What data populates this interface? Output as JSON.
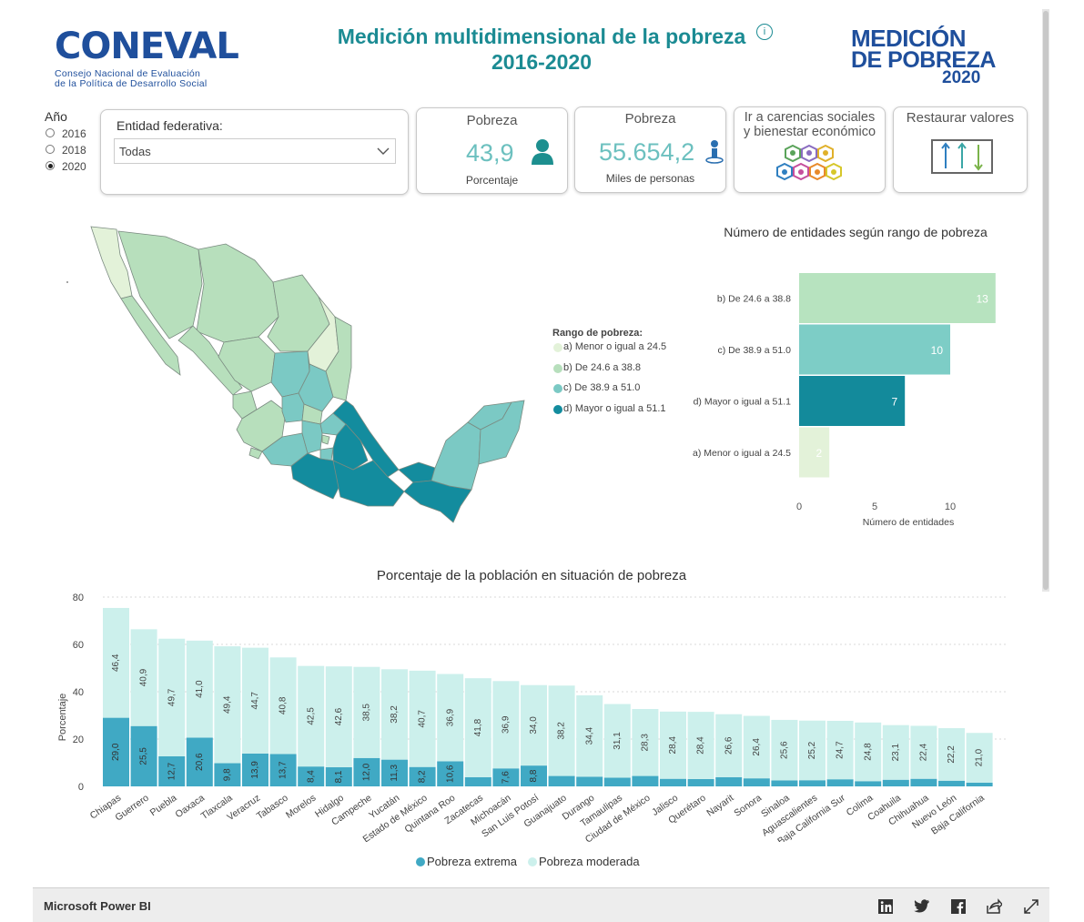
{
  "header": {
    "logo": {
      "name": "CONEVAL",
      "subtitle_line1": "Consejo Nacional de Evaluación",
      "subtitle_line2": "de la Política de Desarrollo Social"
    },
    "title_line1": "Medición multidimensional de la pobreza",
    "title_line2": "2016-2020",
    "logo_right": {
      "line1": "MEDICIÓN",
      "line2": "DE POBREZA",
      "line3": "2020"
    }
  },
  "filters": {
    "year_label": "Año",
    "years": [
      {
        "label": "2016",
        "selected": false
      },
      {
        "label": "2018",
        "selected": false
      },
      {
        "label": "2020",
        "selected": true
      }
    ],
    "entity_label": "Entidad federativa:",
    "entity_value": "Todas"
  },
  "cards": {
    "poverty_pct": {
      "title": "Pobreza",
      "value": "43,9",
      "label": "Porcentaje"
    },
    "poverty_people": {
      "title": "Pobreza",
      "value": "55.654,2",
      "label": "Miles de personas"
    },
    "social_link": {
      "title_line1": "Ir a carencias sociales",
      "title_line2": "y bienestar económico"
    },
    "reset": {
      "title": "Restaurar valores"
    }
  },
  "map_legend": {
    "title": "Rango de pobreza:",
    "items": [
      {
        "label": "a) Menor o igual a 24.5",
        "color": "#e3f2d9"
      },
      {
        "label": "b) De 24.6 a 38.8",
        "color": "#b7dfbc"
      },
      {
        "label": "c) De 38.9 a 51.0",
        "color": "#7bc9c4"
      },
      {
        "label": "d) Mayor o igual a 51.1",
        "color": "#138c9e"
      }
    ]
  },
  "chart_data": [
    {
      "type": "bar",
      "orientation": "horizontal",
      "title": "Número de entidades según rango de pobreza",
      "xlabel": "Número de entidades",
      "categories": [
        "b) De 24.6 a 38.8",
        "c) De 38.9 a 51.0",
        "d) Mayor o igual a 51.1",
        "a) Menor o igual a 24.5"
      ],
      "values": [
        13,
        10,
        7,
        2
      ],
      "colors": [
        "#b7e3bf",
        "#7dcdc6",
        "#138a9b",
        "#e3f2d9"
      ],
      "xticks": [
        "0",
        "5",
        "10"
      ],
      "xlim": [
        0,
        13
      ]
    },
    {
      "type": "bar",
      "stacked": true,
      "title": "Porcentaje de la población en situación de pobreza",
      "ylabel": "Porcentaje",
      "ylim": [
        0,
        80
      ],
      "yticks": [
        "0",
        "20",
        "40",
        "60",
        "80"
      ],
      "categories": [
        "Chiapas",
        "Guerrero",
        "Puebla",
        "Oaxaca",
        "Tlaxcala",
        "Veracruz",
        "Tabasco",
        "Morelos",
        "Hidalgo",
        "Campeche",
        "Yucatán",
        "Estado de México",
        "Quintana Roo",
        "Zacatecas",
        "Michoacán",
        "San Luis Potosí",
        "Guanajuato",
        "Durango",
        "Tamaulipas",
        "Ciudad de México",
        "Jalisco",
        "Querétaro",
        "Nayarit",
        "Sonora",
        "Sinaloa",
        "Aguascalientes",
        "Baja California Sur",
        "Colima",
        "Coahuila",
        "Chihuahua",
        "Nuevo León",
        "Baja California"
      ],
      "series": [
        {
          "name": "Pobreza extrema",
          "color": "#40a9c4",
          "values": [
            29.0,
            25.5,
            12.7,
            20.6,
            9.8,
            13.9,
            13.7,
            8.4,
            8.1,
            12.0,
            11.3,
            8.2,
            10.6,
            3.9,
            7.6,
            8.8,
            4.4,
            4.1,
            3.7,
            4.4,
            3.2,
            3.1,
            3.9,
            3.4,
            2.5,
            2.6,
            3.0,
            2.2,
            2.8,
            3.2,
            2.4,
            1.6
          ],
          "labels": [
            "29,0",
            "25,5",
            "12,7",
            "20,6",
            "9,8",
            "13,9",
            "13,7",
            "8,4",
            "8,1",
            "12,0",
            "11,3",
            "8,2",
            "10,6",
            "",
            "7,6",
            "8,8",
            "",
            "",
            "",
            "",
            "",
            "",
            "",
            "",
            "",
            "",
            "",
            "",
            "",
            "",
            "",
            ""
          ]
        },
        {
          "name": "Pobreza moderada",
          "color": "#ccf0ec",
          "values": [
            46.4,
            40.9,
            49.7,
            41.0,
            49.4,
            44.7,
            40.8,
            42.5,
            42.6,
            38.5,
            38.2,
            40.7,
            36.9,
            41.8,
            36.9,
            34.0,
            38.2,
            34.4,
            31.1,
            28.3,
            28.4,
            28.4,
            26.6,
            26.4,
            25.6,
            25.2,
            24.7,
            24.8,
            23.1,
            22.4,
            22.2,
            21.0
          ],
          "labels": [
            "46,4",
            "40,9",
            "49,7",
            "41,0",
            "49,4",
            "44,7",
            "40,8",
            "42,5",
            "42,6",
            "38,5",
            "38,2",
            "40,7",
            "36,9",
            "41,8",
            "36,9",
            "34,0",
            "38,2",
            "34,4",
            "31,1",
            "28,3",
            "28,4",
            "28,4",
            "26,6",
            "26,4",
            "25,6",
            "25,2",
            "24,7",
            "24,8",
            "23,1",
            "22,4",
            "22,2",
            "21,0"
          ]
        }
      ]
    }
  ],
  "footer": {
    "title": "Microsoft Power BI"
  },
  "icons": [
    "info-icon",
    "person-icon",
    "person-map-icon",
    "hexagons-icon",
    "sliders-icon",
    "linkedin-icon",
    "twitter-icon",
    "facebook-icon",
    "share-icon",
    "fullscreen-icon",
    "chevron-down-icon"
  ]
}
